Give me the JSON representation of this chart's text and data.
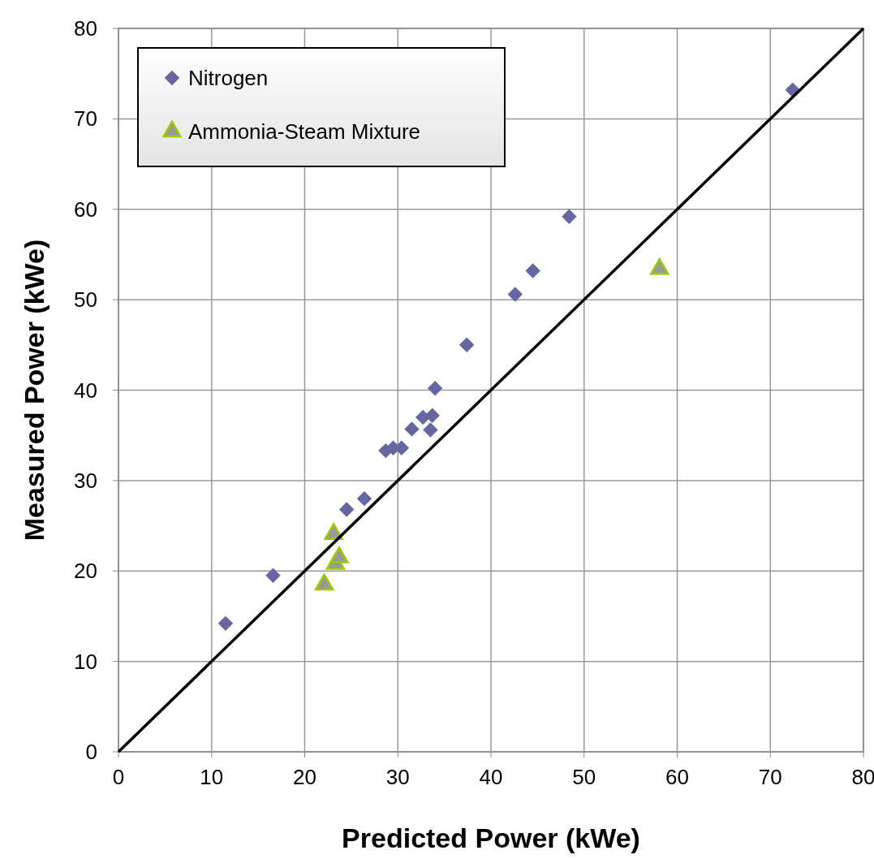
{
  "chart_data": {
    "type": "scatter",
    "xlabel": "Predicted Power (kWe)",
    "ylabel": "Measured Power (kWe)",
    "xlim": [
      0,
      80
    ],
    "ylim": [
      0,
      80
    ],
    "xticks": [
      0,
      10,
      20,
      30,
      40,
      50,
      60,
      70,
      80
    ],
    "yticks": [
      0,
      10,
      20,
      30,
      40,
      50,
      60,
      70,
      80
    ],
    "grid": true,
    "legend": "top left",
    "series": [
      {
        "name": "Nitrogen",
        "color": "#6666a0",
        "marker": "diamond",
        "x": [
          11.5,
          16.6,
          24.5,
          26.4,
          28.7,
          29.5,
          30.4,
          31.5,
          32.7,
          33.5,
          33.7,
          34.0,
          37.4,
          42.6,
          44.5,
          48.4,
          72.4
        ],
        "values": [
          14.2,
          19.5,
          26.8,
          28.0,
          33.3,
          33.6,
          33.6,
          35.7,
          37.0,
          35.6,
          37.2,
          40.2,
          45.0,
          50.6,
          53.2,
          59.2,
          73.2
        ]
      },
      {
        "name": "Ammonia-Steam Mixture",
        "color": "#99cc00",
        "marker": "triangle",
        "x": [
          22.1,
          23.1,
          23.3,
          23.7,
          58.1
        ],
        "values": [
          18.5,
          24.1,
          20.8,
          21.5,
          53.4
        ]
      },
      {
        "type": "line",
        "color": "#000000",
        "marker": "none",
        "x": [
          0,
          80
        ],
        "values": [
          0,
          80
        ]
      }
    ]
  }
}
